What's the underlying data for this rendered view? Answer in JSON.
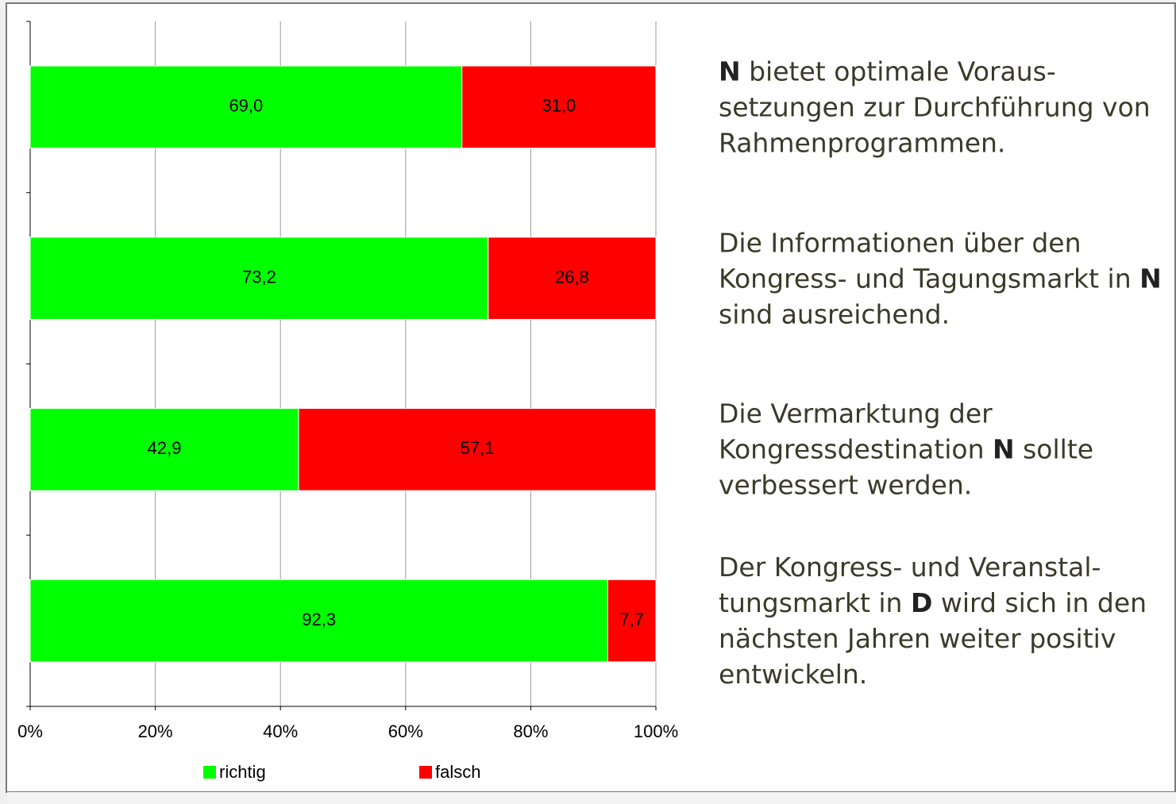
{
  "chart_data": {
    "type": "stacked_barh",
    "categories": [
      [
        {
          "text": "N",
          "bold": true
        },
        {
          "text": " bietet optimale Voraus-setzungen zur Durchführung von Rahmenprogrammen.",
          "bold": false
        }
      ],
      [
        {
          "text": "Die Informationen über den Kongress- und Tagungsmarkt in ",
          "bold": false
        },
        {
          "text": "N",
          "bold": true
        },
        {
          "text": " sind ausreichend.",
          "bold": false
        }
      ],
      [
        {
          "text": "Die Vermarktung der Kongressdestination ",
          "bold": false
        },
        {
          "text": "N",
          "bold": true
        },
        {
          "text": " sollte verbessert werden.",
          "bold": false
        }
      ],
      [
        {
          "text": "Der Kongress- und Veranstal-tungsmarkt in ",
          "bold": false
        },
        {
          "text": "D",
          "bold": true
        },
        {
          "text": " wird sich in den nächsten Jahren weiter positiv entwickeln.",
          "bold": false
        }
      ]
    ],
    "series": [
      {
        "name": "richtig",
        "color": "#00ff00",
        "values": [
          69.0,
          73.2,
          42.9,
          92.3
        ],
        "value_labels": [
          "69,0",
          "73,2",
          "42,9",
          "92,3"
        ]
      },
      {
        "name": "falsch",
        "color": "#ff0000",
        "values": [
          31.0,
          26.8,
          57.1,
          7.7
        ],
        "value_labels": [
          "31,0",
          "26,8",
          "57,1",
          "7,7"
        ]
      }
    ],
    "xlim": [
      0,
      100
    ],
    "xticks": [
      {
        "value": 0,
        "label": "0%"
      },
      {
        "value": 20,
        "label": "20%"
      },
      {
        "value": 40,
        "label": "40%"
      },
      {
        "value": 60,
        "label": "60%"
      },
      {
        "value": 80,
        "label": "80%"
      },
      {
        "value": 100,
        "label": "100%"
      }
    ],
    "grid": true
  }
}
